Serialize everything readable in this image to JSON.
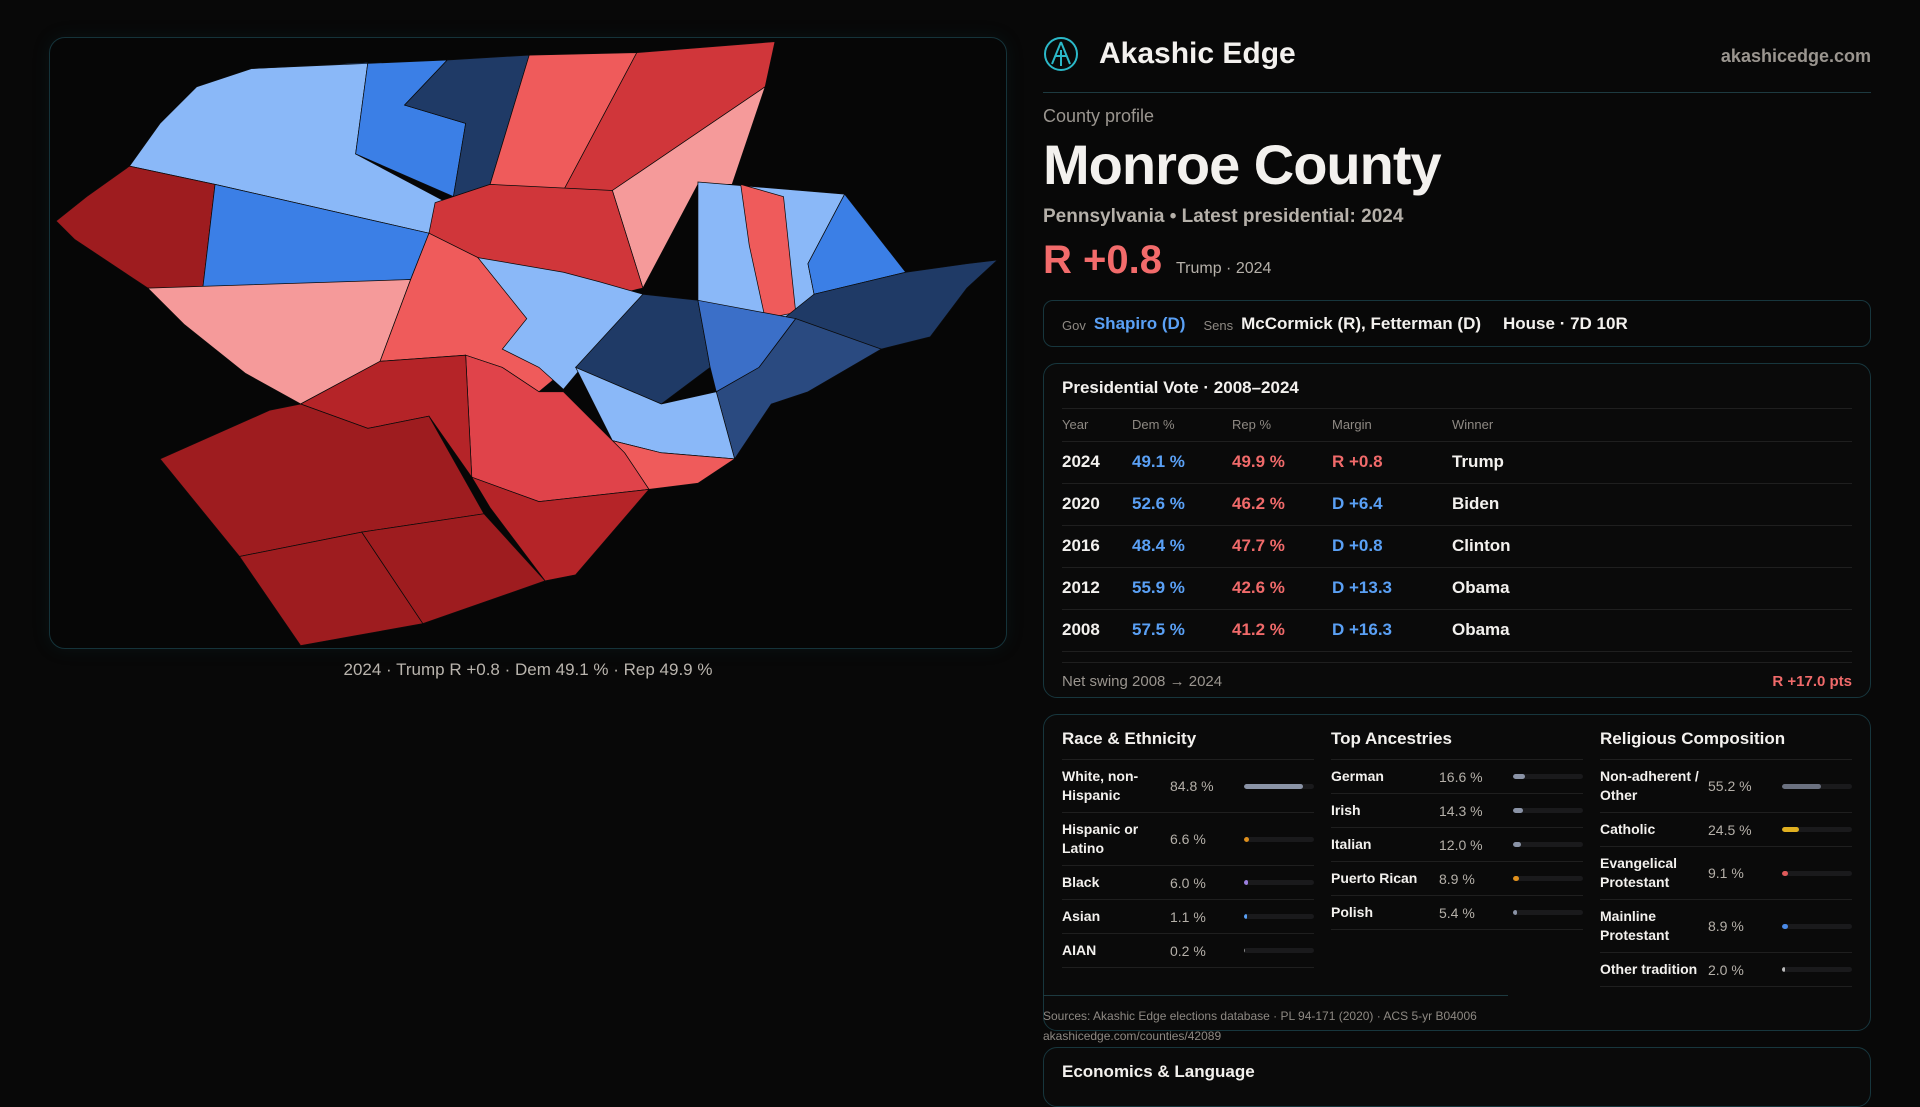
{
  "brand": {
    "name": "Akashic Edge",
    "site": "akashicedge.com"
  },
  "profile": {
    "kicker": "County profile",
    "title": "Monroe County",
    "subtitle": "Pennsylvania • Latest presidential: 2024",
    "margin": "R +0.8",
    "winner_year": "Trump · 2024"
  },
  "officials": {
    "gov_label": "Gov",
    "gov": "Shapiro (D)",
    "sens_label": "Sens",
    "sens": "McCormick (R), Fetterman (D)",
    "house": "House · 7D 10R"
  },
  "map": {
    "caption": "2024 · Trump R +0.8 · Dem 49.1 % · Rep 49.9 %"
  },
  "presidential": {
    "title": "Presidential Vote · 2008–2024",
    "headers": [
      "Year",
      "Dem %",
      "Rep %",
      "Margin",
      "Winner"
    ],
    "rows": [
      {
        "year": "2024",
        "dem": "49.1 %",
        "rep": "49.9 %",
        "margin": "R +0.8",
        "party": "R",
        "winner": "Trump"
      },
      {
        "year": "2020",
        "dem": "52.6 %",
        "rep": "46.2 %",
        "margin": "D +6.4",
        "party": "D",
        "winner": "Biden"
      },
      {
        "year": "2016",
        "dem": "48.4 %",
        "rep": "47.7 %",
        "margin": "D +0.8",
        "party": "D",
        "winner": "Clinton"
      },
      {
        "year": "2012",
        "dem": "55.9 %",
        "rep": "42.6 %",
        "margin": "D +13.3",
        "party": "D",
        "winner": "Obama"
      },
      {
        "year": "2008",
        "dem": "57.5 %",
        "rep": "41.2 %",
        "margin": "D +16.3",
        "party": "D",
        "winner": "Obama"
      }
    ],
    "swing_label": "Net swing 2008 → 2024",
    "swing_value": "R +17.0 pts"
  },
  "demographics": [
    {
      "title": "Race & Ethnicity",
      "items": [
        {
          "label": "White, non-Hispanic",
          "value": "84.8 %",
          "pct": 84.8,
          "color": "#8a93a6"
        },
        {
          "label": "Hispanic or Latino",
          "value": "6.6 %",
          "pct": 6.6,
          "color": "#e0901c"
        },
        {
          "label": "Black",
          "value": "6.0 %",
          "pct": 6.0,
          "color": "#9b7fe0"
        },
        {
          "label": "Asian",
          "value": "1.1 %",
          "pct": 1.1,
          "color": "#5aa0f5"
        },
        {
          "label": "AIAN",
          "value": "0.2 %",
          "pct": 0.2,
          "color": "#888"
        }
      ]
    },
    {
      "title": "Top Ancestries",
      "items": [
        {
          "label": "German",
          "value": "16.6 %",
          "pct": 16.6,
          "color": "#8a93a6"
        },
        {
          "label": "Irish",
          "value": "14.3 %",
          "pct": 14.3,
          "color": "#8a93a6"
        },
        {
          "label": "Italian",
          "value": "12.0 %",
          "pct": 12.0,
          "color": "#8a93a6"
        },
        {
          "label": "Puerto Rican",
          "value": "8.9 %",
          "pct": 8.9,
          "color": "#e0901c"
        },
        {
          "label": "Polish",
          "value": "5.4 %",
          "pct": 5.4,
          "color": "#8a93a6"
        }
      ]
    },
    {
      "title": "Religious Composition",
      "items": [
        {
          "label": "Non-adherent / Other",
          "value": "55.2 %",
          "pct": 55.2,
          "color": "#6b7180"
        },
        {
          "label": "Catholic",
          "value": "24.5 %",
          "pct": 24.5,
          "color": "#e0b020"
        },
        {
          "label": "Evangelical Protestant",
          "value": "9.1 %",
          "pct": 9.1,
          "color": "#e05a5a"
        },
        {
          "label": "Mainline Protestant",
          "value": "8.9 %",
          "pct": 8.9,
          "color": "#4a8ae8"
        },
        {
          "label": "Other tradition",
          "value": "2.0 %",
          "pct": 2.0,
          "color": "#bbb"
        }
      ]
    }
  ],
  "sources": {
    "line1": "Sources: Akashic Edge elections database · PL 94-171 (2020) · ACS 5-yr B04006",
    "line2": "akashicedge.com/counties/42089"
  },
  "economics": {
    "title": "Economics & Language"
  },
  "colors": {
    "dem": "#5aa0f5",
    "rep": "#f06a6a"
  }
}
